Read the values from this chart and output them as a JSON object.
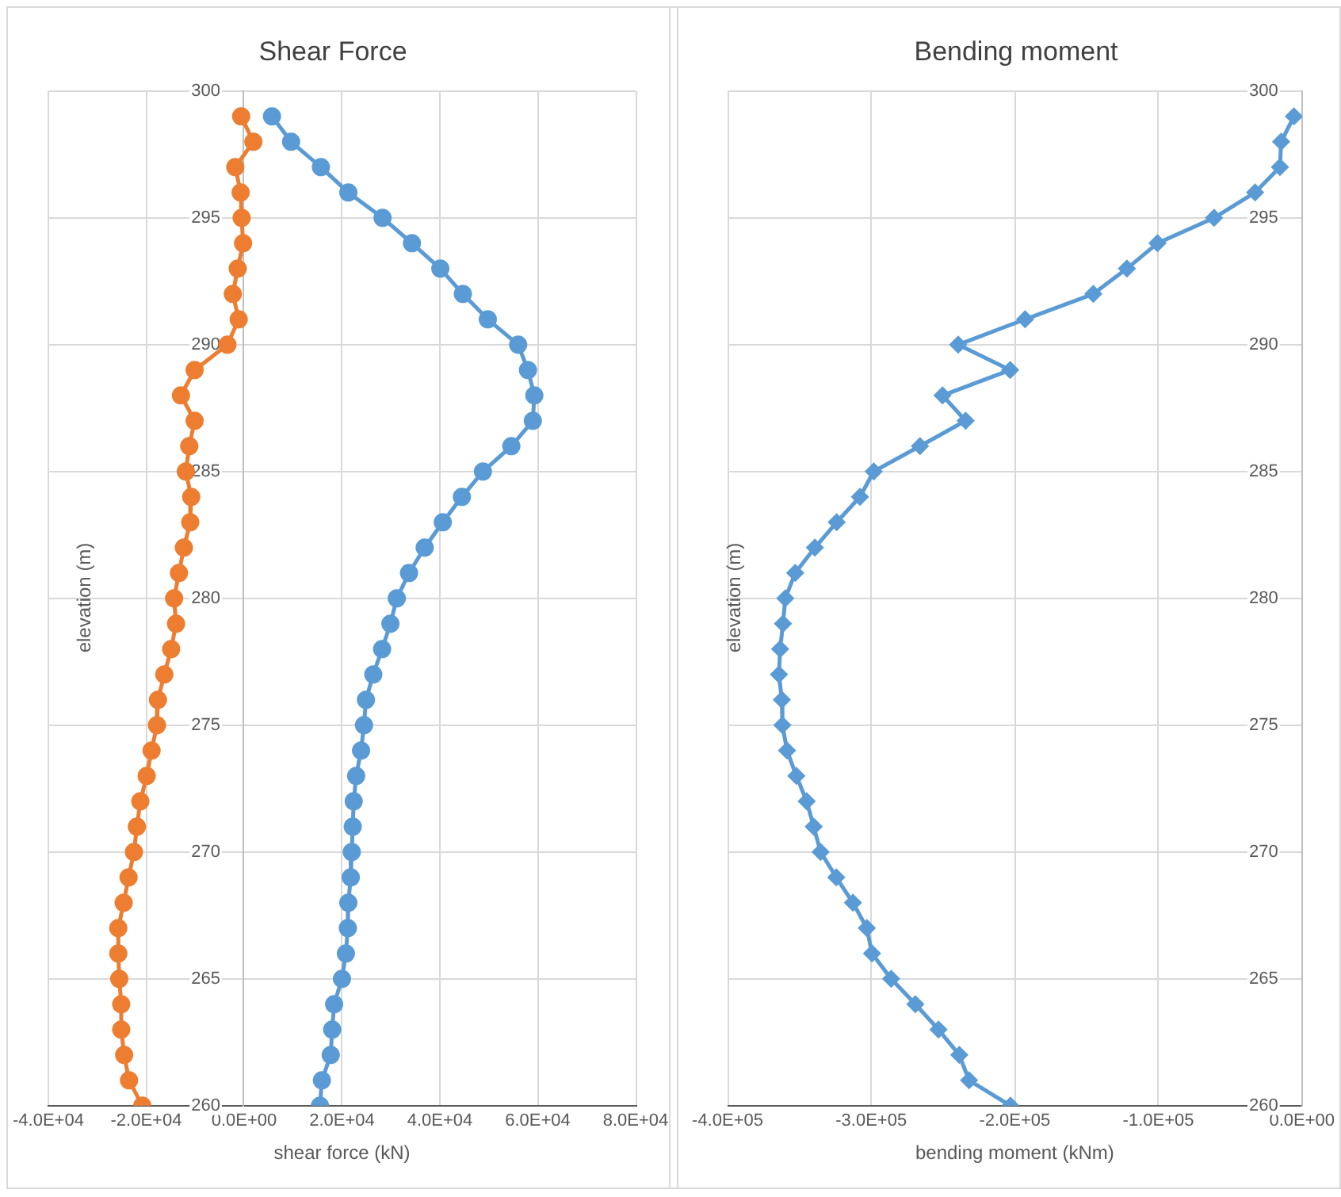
{
  "chart_data": [
    {
      "type": "line",
      "title": "Shear Force",
      "xlabel": "shear force (kN)",
      "ylabel": "elevation  (m)",
      "marker": "circle",
      "grid": true,
      "xlim": [
        -40000,
        80000
      ],
      "xticks": [
        {
          "value": -40000,
          "label": "-4.0E+04"
        },
        {
          "value": -20000,
          "label": "-2.0E+04"
        },
        {
          "value": 0,
          "label": "0.0E+00"
        },
        {
          "value": 20000,
          "label": "2.0E+04"
        },
        {
          "value": 40000,
          "label": "4.0E+04"
        },
        {
          "value": 60000,
          "label": "6.0E+04"
        },
        {
          "value": 80000,
          "label": "8.0E+04"
        }
      ],
      "ylim": [
        260,
        300
      ],
      "yticks": [
        260,
        265,
        270,
        275,
        280,
        285,
        290,
        295,
        300
      ],
      "series": [
        {
          "color": "#5b9bd5",
          "x": [
            5700,
            9600,
            15700,
            21300,
            28300,
            34300,
            40100,
            44700,
            49800,
            56000,
            58000,
            59300,
            59000,
            54600,
            48800,
            44500,
            40600,
            36900,
            33700,
            31200,
            29900,
            28200,
            26400,
            24900,
            24500,
            23900,
            22900,
            22400,
            22200,
            22000,
            21800,
            21300,
            21200,
            20800,
            20000,
            18400,
            18000,
            17700,
            15900,
            15500
          ],
          "values": [
            299,
            298,
            297,
            296,
            295,
            294,
            293,
            292,
            291,
            290,
            289,
            288,
            287,
            286,
            285,
            284,
            283,
            282,
            281,
            280,
            279,
            278,
            277,
            276,
            275,
            274,
            273,
            272,
            271,
            270,
            269,
            268,
            267,
            266,
            265,
            264,
            263,
            262,
            261,
            260
          ]
        },
        {
          "color": "#ed7d31",
          "x": [
            -600,
            1900,
            -1800,
            -700,
            -500,
            -200,
            -1300,
            -2300,
            -1100,
            -3400,
            -10100,
            -12900,
            -10100,
            -11200,
            -11900,
            -10800,
            -11000,
            -12300,
            -13300,
            -14300,
            -13900,
            -14900,
            -16300,
            -17600,
            -17800,
            -18900,
            -19900,
            -21200,
            -21900,
            -22500,
            -23600,
            -24600,
            -25700,
            -25700,
            -25500,
            -25100,
            -25100,
            -24500,
            -23500,
            -20800
          ],
          "values": [
            299,
            298,
            297,
            296,
            295,
            294,
            293,
            292,
            291,
            290,
            289,
            288,
            287,
            286,
            285,
            284,
            283,
            282,
            281,
            280,
            279,
            278,
            277,
            276,
            275,
            274,
            273,
            272,
            271,
            270,
            269,
            268,
            267,
            266,
            265,
            264,
            263,
            262,
            261,
            260
          ]
        }
      ]
    },
    {
      "type": "line",
      "title": "Bending moment",
      "xlabel": "bending moment (kNm)",
      "ylabel": "elevation  (m)",
      "marker": "diamond",
      "grid": true,
      "xlim": [
        -400000,
        0
      ],
      "xticks": [
        {
          "value": -400000,
          "label": "-4.0E+05"
        },
        {
          "value": -300000,
          "label": "-3.0E+05"
        },
        {
          "value": -200000,
          "label": "-2.0E+05"
        },
        {
          "value": -100000,
          "label": "-1.0E+05"
        },
        {
          "value": 0,
          "label": "0.0E+00"
        }
      ],
      "ylim": [
        260,
        300
      ],
      "yticks": [
        260,
        265,
        270,
        275,
        280,
        285,
        290,
        295,
        300
      ],
      "series": [
        {
          "color": "#5b9bd5",
          "x": [
            -5600,
            -14500,
            -15300,
            -32600,
            -61200,
            -100600,
            -121900,
            -145300,
            -192800,
            -239400,
            -203200,
            -250300,
            -234200,
            -266000,
            -298200,
            -307800,
            -324000,
            -339200,
            -352900,
            -359800,
            -361400,
            -363400,
            -364200,
            -362200,
            -361800,
            -358600,
            -352100,
            -344900,
            -340000,
            -335200,
            -324300,
            -312700,
            -303000,
            -299400,
            -286100,
            -269200,
            -253100,
            -238600,
            -231800,
            -203000
          ],
          "values": [
            299,
            298,
            297,
            296,
            295,
            294,
            293,
            292,
            291,
            290,
            289,
            288,
            287,
            286,
            285,
            284,
            283,
            282,
            281,
            280,
            279,
            278,
            277,
            276,
            275,
            274,
            273,
            272,
            271,
            270,
            269,
            268,
            267,
            266,
            265,
            264,
            263,
            262,
            261,
            260
          ]
        }
      ]
    }
  ]
}
